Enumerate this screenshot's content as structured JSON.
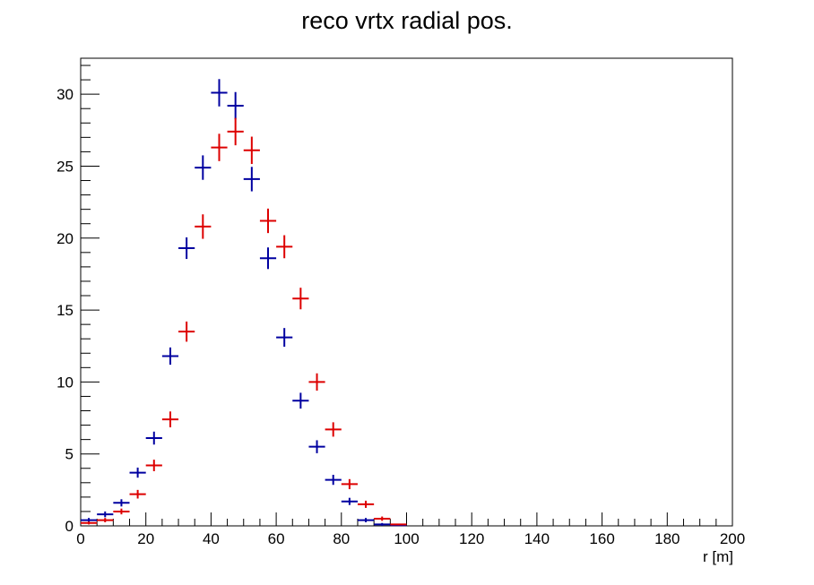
{
  "chart_data": {
    "type": "scatter",
    "title": "reco vrtx radial pos.",
    "xlabel": "r [m]",
    "ylabel": "",
    "xlim": [
      0,
      200
    ],
    "ylim": [
      0,
      32.5
    ],
    "xticks": [
      0,
      20,
      40,
      60,
      80,
      100,
      120,
      140,
      160,
      180,
      200
    ],
    "yticks": [
      0,
      5,
      10,
      15,
      20,
      25,
      30
    ],
    "bin_width": 5,
    "grid": false,
    "legend": "none",
    "series": [
      {
        "color": "#0000a0",
        "x": [
          2.5,
          7.5,
          12.5,
          17.5,
          22.5,
          27.5,
          32.5,
          37.5,
          42.5,
          47.5,
          52.5,
          57.5,
          62.5,
          67.5,
          72.5,
          77.5,
          82.5,
          87.5,
          92.5,
          97.5
        ],
        "y": [
          0.4,
          0.8,
          1.6,
          3.7,
          6.1,
          11.8,
          19.3,
          24.9,
          30.1,
          29.2,
          24.1,
          18.6,
          13.1,
          8.7,
          5.5,
          3.2,
          1.7,
          0.4,
          0.1,
          0.05
        ],
        "yerr": [
          0.15,
          0.2,
          0.25,
          0.35,
          0.45,
          0.6,
          0.75,
          0.85,
          0.95,
          0.95,
          0.85,
          0.75,
          0.65,
          0.55,
          0.45,
          0.35,
          0.25,
          0.15,
          0.1,
          0.05
        ]
      },
      {
        "color": "#dd0000",
        "x": [
          2.5,
          7.5,
          12.5,
          17.5,
          22.5,
          27.5,
          32.5,
          37.5,
          42.5,
          47.5,
          52.5,
          57.5,
          62.5,
          67.5,
          72.5,
          77.5,
          82.5,
          87.5,
          92.5,
          97.5
        ],
        "y": [
          0.2,
          0.4,
          1.0,
          2.2,
          4.2,
          7.4,
          13.5,
          20.8,
          26.3,
          27.4,
          26.1,
          21.2,
          19.4,
          15.8,
          10.0,
          6.7,
          2.9,
          1.5,
          0.5,
          0.1
        ],
        "yerr": [
          0.1,
          0.15,
          0.2,
          0.3,
          0.4,
          0.55,
          0.7,
          0.85,
          0.95,
          0.95,
          0.95,
          0.85,
          0.8,
          0.75,
          0.6,
          0.5,
          0.35,
          0.25,
          0.15,
          0.05
        ]
      }
    ]
  }
}
